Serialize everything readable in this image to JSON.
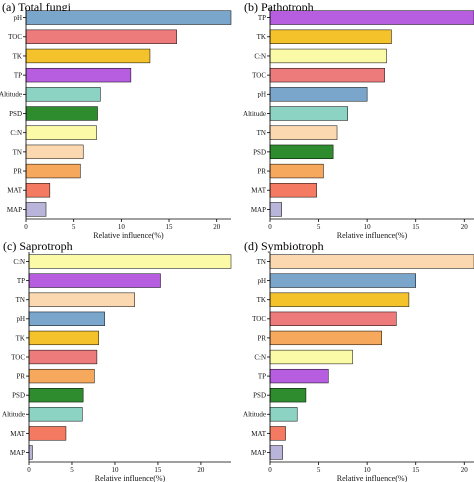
{
  "chart_data": [
    {
      "type": "bar",
      "orientation": "horizontal",
      "title": "(a) Total fungi",
      "xlabel": "Relative influence(%)",
      "xlim": [
        0,
        21.5
      ],
      "xticks": [
        0,
        5,
        10,
        15,
        20
      ],
      "categories": [
        "pH",
        "TOC",
        "TK",
        "TP",
        "Altitude",
        "PSD",
        "C:N",
        "TN",
        "PR",
        "MAT",
        "MAP"
      ],
      "values": [
        21.5,
        15.8,
        13.0,
        11.0,
        7.8,
        7.5,
        7.4,
        6.0,
        5.7,
        2.5,
        2.1
      ],
      "colors": [
        "#7aa6cc",
        "#ee7b7b",
        "#f4c32c",
        "#b75ee0",
        "#8dd3c3",
        "#2e8b2e",
        "#fbfaa6",
        "#fbd8b0",
        "#f6a85c",
        "#f47a62",
        "#b8b4da"
      ]
    },
    {
      "type": "bar",
      "orientation": "horizontal",
      "title": "(b) Pathotroph",
      "xlabel": "Relative influence(%)",
      "xlim": [
        0,
        21
      ],
      "xticks": [
        0,
        5,
        10,
        15,
        20
      ],
      "categories": [
        "TP",
        "TK",
        "C:N",
        "TOC",
        "pH",
        "Altitude",
        "TN",
        "PSD",
        "PR",
        "MAT",
        "MAP"
      ],
      "values": [
        21.0,
        12.5,
        12.0,
        11.8,
        10.0,
        8.0,
        6.9,
        6.5,
        5.5,
        4.8,
        1.2
      ],
      "colors": [
        "#b75ee0",
        "#f4c32c",
        "#fbfaa6",
        "#ee7b7b",
        "#7aa6cc",
        "#8dd3c3",
        "#fbd8b0",
        "#2e8b2e",
        "#f6a85c",
        "#f47a62",
        "#b8b4da"
      ]
    },
    {
      "type": "bar",
      "orientation": "horizontal",
      "title": "(c) Saprotroph",
      "xlabel": "Relative influence(%)",
      "xlim": [
        0,
        23.5
      ],
      "xticks": [
        0,
        5,
        10,
        15,
        20
      ],
      "categories": [
        "C:N",
        "TP",
        "TN",
        "pH",
        "TK",
        "TOC",
        "PR",
        "PSD",
        "Altitude",
        "MAT",
        "MAP"
      ],
      "values": [
        23.5,
        15.3,
        12.3,
        8.8,
        8.1,
        7.9,
        7.6,
        6.3,
        6.2,
        4.3,
        0.4
      ],
      "colors": [
        "#fbfaa6",
        "#b75ee0",
        "#fbd8b0",
        "#7aa6cc",
        "#f4c32c",
        "#ee7b7b",
        "#f6a85c",
        "#2e8b2e",
        "#8dd3c3",
        "#f47a62",
        "#b8b4da"
      ]
    },
    {
      "type": "bar",
      "orientation": "horizontal",
      "title": "(d) Symbiotroph",
      "xlabel": "Relative influence(%)",
      "xlim": [
        0,
        21
      ],
      "xticks": [
        0,
        5,
        10,
        15,
        20
      ],
      "categories": [
        "TN",
        "pH",
        "TK",
        "TOC",
        "PR",
        "C:N",
        "TP",
        "PSD",
        "Altitude",
        "MAT",
        "MAP"
      ],
      "values": [
        21.0,
        15.0,
        14.3,
        13.0,
        11.5,
        8.5,
        6.0,
        3.7,
        2.8,
        1.6,
        1.3
      ],
      "colors": [
        "#fbd8b0",
        "#7aa6cc",
        "#f4c32c",
        "#ee7b7b",
        "#f6a85c",
        "#fbfaa6",
        "#b75ee0",
        "#2e8b2e",
        "#8dd3c3",
        "#f47a62",
        "#b8b4da"
      ]
    }
  ]
}
